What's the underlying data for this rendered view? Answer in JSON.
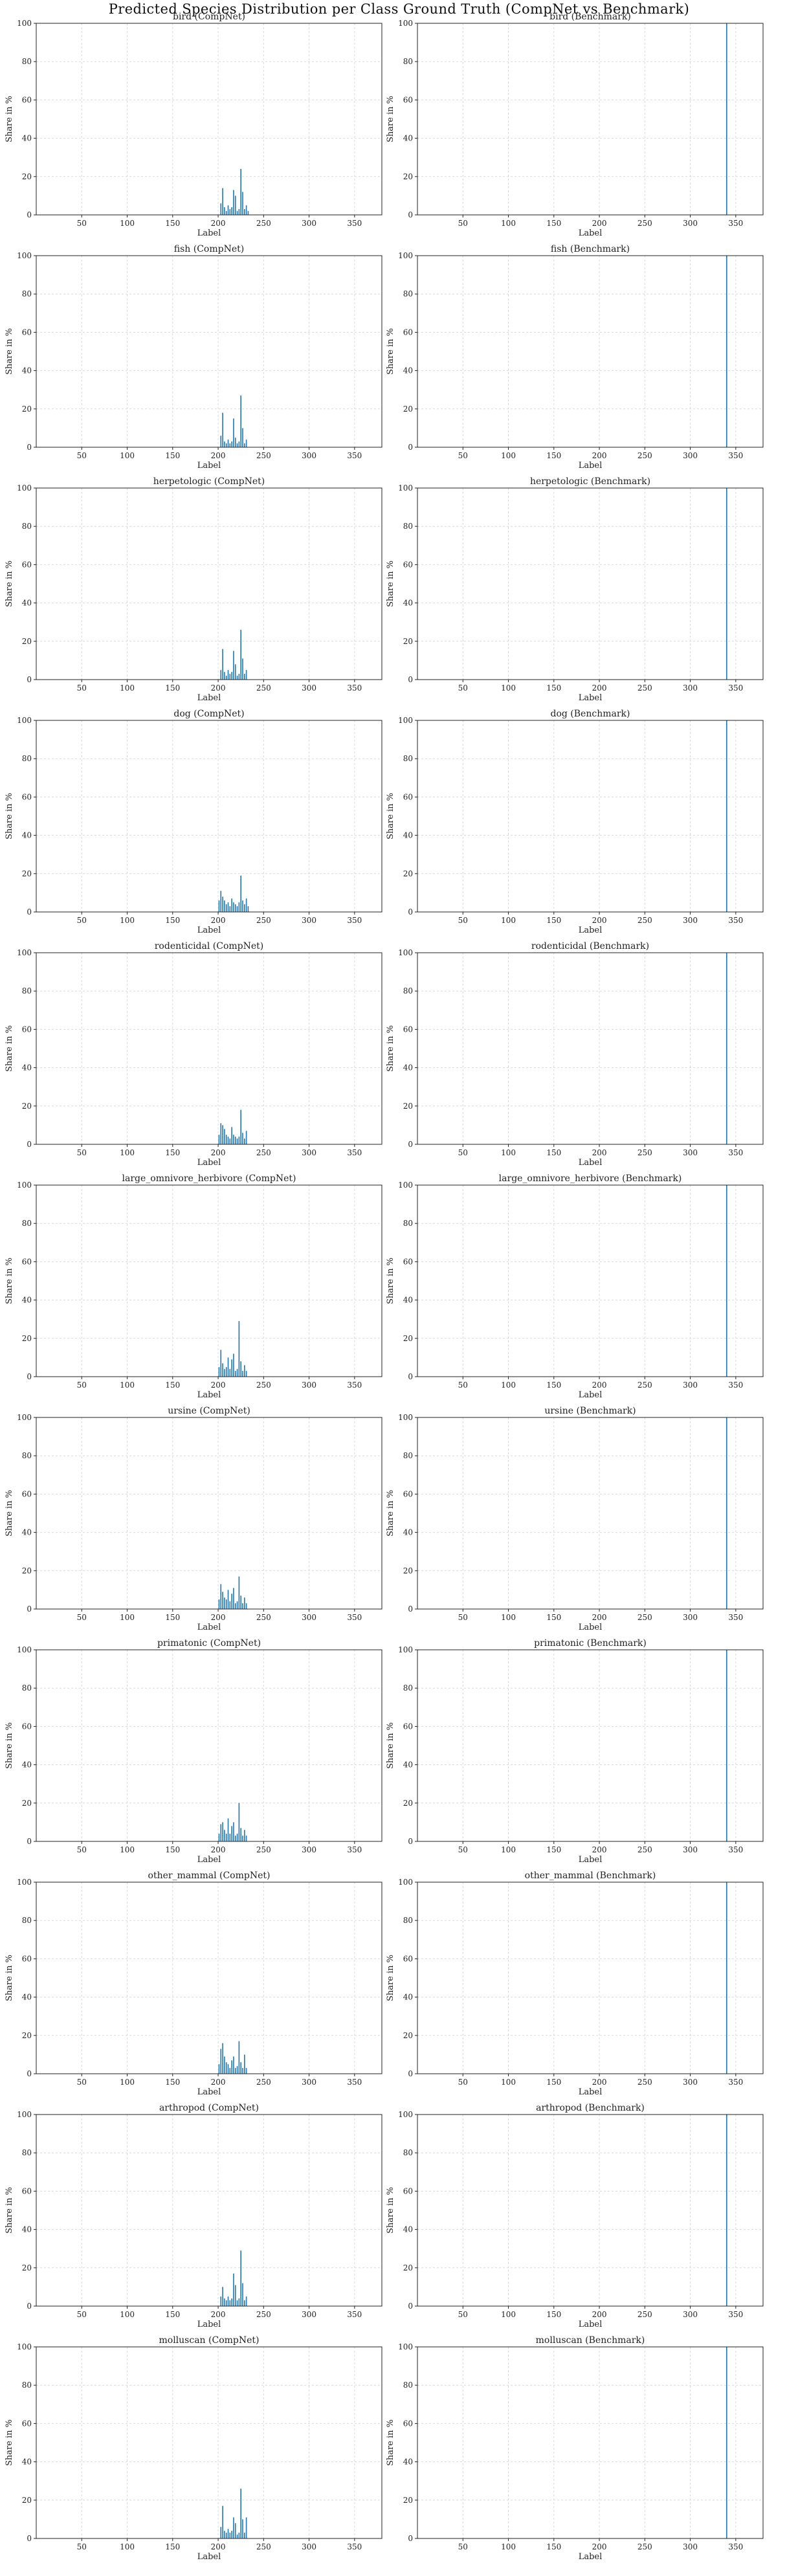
{
  "figure_title": "Predicted Species Distribution per Class Ground Truth (CompNet vs Benchmark)",
  "colors": {
    "bar": "#1f77b4",
    "frame": "#222222",
    "grid": "#d9d9d9"
  },
  "chart_data": [
    {
      "type": "bar",
      "title": "bird (CompNet)",
      "xlabel": "Label",
      "ylabel": "Share in %",
      "xlim": [
        0,
        380
      ],
      "ylim": [
        0,
        100
      ],
      "xticks": [
        50,
        100,
        150,
        200,
        250,
        300,
        350
      ],
      "yticks": [
        0,
        20,
        40,
        60,
        80,
        100
      ],
      "grid": true,
      "x": [
        203,
        205,
        207,
        209,
        211,
        213,
        215,
        217,
        219,
        221,
        223,
        225,
        227,
        229,
        231,
        233
      ],
      "values": [
        6,
        14,
        4,
        2,
        5,
        3,
        4,
        13,
        10,
        2,
        3,
        24,
        12,
        3,
        5,
        2
      ]
    },
    {
      "type": "bar",
      "title": "bird (Benchmark)",
      "xlabel": "Label",
      "ylabel": "Share in %",
      "xlim": [
        0,
        380
      ],
      "ylim": [
        0,
        100
      ],
      "xticks": [
        50,
        100,
        150,
        200,
        250,
        300,
        350
      ],
      "yticks": [
        0,
        20,
        40,
        60,
        80,
        100
      ],
      "grid": true,
      "x": [
        340
      ],
      "values": [
        100
      ]
    },
    {
      "type": "bar",
      "title": "fish (CompNet)",
      "xlabel": "Label",
      "ylabel": "Share in %",
      "xlim": [
        0,
        380
      ],
      "ylim": [
        0,
        100
      ],
      "xticks": [
        50,
        100,
        150,
        200,
        250,
        300,
        350
      ],
      "yticks": [
        0,
        20,
        40,
        60,
        80,
        100
      ],
      "grid": true,
      "x": [
        203,
        205,
        207,
        209,
        211,
        213,
        215,
        217,
        219,
        221,
        223,
        225,
        227,
        229,
        231
      ],
      "values": [
        6,
        18,
        3,
        2,
        4,
        2,
        3,
        15,
        5,
        2,
        3,
        27,
        10,
        2,
        4
      ]
    },
    {
      "type": "bar",
      "title": "fish (Benchmark)",
      "xlabel": "Label",
      "ylabel": "Share in %",
      "xlim": [
        0,
        380
      ],
      "ylim": [
        0,
        100
      ],
      "xticks": [
        50,
        100,
        150,
        200,
        250,
        300,
        350
      ],
      "yticks": [
        0,
        20,
        40,
        60,
        80,
        100
      ],
      "grid": true,
      "x": [
        340
      ],
      "values": [
        100
      ]
    },
    {
      "type": "bar",
      "title": "herpetologic (CompNet)",
      "xlabel": "Label",
      "ylabel": "Share in %",
      "xlim": [
        0,
        380
      ],
      "ylim": [
        0,
        100
      ],
      "xticks": [
        50,
        100,
        150,
        200,
        250,
        300,
        350
      ],
      "yticks": [
        0,
        20,
        40,
        60,
        80,
        100
      ],
      "grid": true,
      "x": [
        203,
        205,
        207,
        209,
        211,
        213,
        215,
        217,
        219,
        221,
        223,
        225,
        227,
        229,
        231
      ],
      "values": [
        5,
        16,
        4,
        2,
        5,
        3,
        4,
        15,
        8,
        2,
        3,
        26,
        11,
        3,
        5
      ]
    },
    {
      "type": "bar",
      "title": "herpetologic (Benchmark)",
      "xlabel": "Label",
      "ylabel": "Share in %",
      "xlim": [
        0,
        380
      ],
      "ylim": [
        0,
        100
      ],
      "xticks": [
        50,
        100,
        150,
        200,
        250,
        300,
        350
      ],
      "yticks": [
        0,
        20,
        40,
        60,
        80,
        100
      ],
      "grid": true,
      "x": [
        340
      ],
      "values": [
        100
      ]
    },
    {
      "type": "bar",
      "title": "dog (CompNet)",
      "xlabel": "Label",
      "ylabel": "Share in %",
      "xlim": [
        0,
        380
      ],
      "ylim": [
        0,
        100
      ],
      "xticks": [
        50,
        100,
        150,
        200,
        250,
        300,
        350
      ],
      "yticks": [
        0,
        20,
        40,
        60,
        80,
        100
      ],
      "grid": true,
      "x": [
        201,
        203,
        205,
        207,
        209,
        211,
        213,
        215,
        217,
        219,
        221,
        223,
        225,
        227,
        229,
        231,
        233
      ],
      "values": [
        6,
        11,
        8,
        6,
        4,
        5,
        3,
        7,
        5,
        4,
        3,
        5,
        19,
        6,
        4,
        7,
        3
      ]
    },
    {
      "type": "bar",
      "title": "dog (Benchmark)",
      "xlabel": "Label",
      "ylabel": "Share in %",
      "xlim": [
        0,
        380
      ],
      "ylim": [
        0,
        100
      ],
      "xticks": [
        50,
        100,
        150,
        200,
        250,
        300,
        350
      ],
      "yticks": [
        0,
        20,
        40,
        60,
        80,
        100
      ],
      "grid": true,
      "x": [
        340
      ],
      "values": [
        100
      ]
    },
    {
      "type": "bar",
      "title": "rodenticidal (CompNet)",
      "xlabel": "Label",
      "ylabel": "Share in %",
      "xlim": [
        0,
        380
      ],
      "ylim": [
        0,
        100
      ],
      "xticks": [
        50,
        100,
        150,
        200,
        250,
        300,
        350
      ],
      "yticks": [
        0,
        20,
        40,
        60,
        80,
        100
      ],
      "grid": true,
      "x": [
        201,
        203,
        205,
        207,
        209,
        211,
        213,
        215,
        217,
        219,
        221,
        223,
        225,
        227,
        229,
        231
      ],
      "values": [
        5,
        11,
        10,
        8,
        5,
        4,
        3,
        9,
        5,
        4,
        3,
        4,
        18,
        6,
        3,
        7
      ]
    },
    {
      "type": "bar",
      "title": "rodenticidal (Benchmark)",
      "xlabel": "Label",
      "ylabel": "Share in %",
      "xlim": [
        0,
        380
      ],
      "ylim": [
        0,
        100
      ],
      "xticks": [
        50,
        100,
        150,
        200,
        250,
        300,
        350
      ],
      "yticks": [
        0,
        20,
        40,
        60,
        80,
        100
      ],
      "grid": true,
      "x": [
        340
      ],
      "values": [
        100
      ]
    },
    {
      "type": "bar",
      "title": "large_omnivore_herbivore (CompNet)",
      "xlabel": "Label",
      "ylabel": "Share in %",
      "xlim": [
        0,
        380
      ],
      "ylim": [
        0,
        100
      ],
      "xticks": [
        50,
        100,
        150,
        200,
        250,
        300,
        350
      ],
      "yticks": [
        0,
        20,
        40,
        60,
        80,
        100
      ],
      "grid": true,
      "x": [
        201,
        203,
        205,
        207,
        209,
        211,
        213,
        215,
        217,
        219,
        221,
        223,
        225,
        227,
        229,
        231
      ],
      "values": [
        5,
        14,
        7,
        4,
        5,
        10,
        4,
        9,
        12,
        3,
        4,
        29,
        8,
        3,
        6,
        3
      ]
    },
    {
      "type": "bar",
      "title": "large_omnivore_herbivore (Benchmark)",
      "xlabel": "Label",
      "ylabel": "Share in %",
      "xlim": [
        0,
        380
      ],
      "ylim": [
        0,
        100
      ],
      "xticks": [
        50,
        100,
        150,
        200,
        250,
        300,
        350
      ],
      "yticks": [
        0,
        20,
        40,
        60,
        80,
        100
      ],
      "grid": true,
      "x": [
        340
      ],
      "values": [
        100
      ]
    },
    {
      "type": "bar",
      "title": "ursine (CompNet)",
      "xlabel": "Label",
      "ylabel": "Share in %",
      "xlim": [
        0,
        380
      ],
      "ylim": [
        0,
        100
      ],
      "xticks": [
        50,
        100,
        150,
        200,
        250,
        300,
        350
      ],
      "yticks": [
        0,
        20,
        40,
        60,
        80,
        100
      ],
      "grid": true,
      "x": [
        201,
        203,
        205,
        207,
        209,
        211,
        213,
        215,
        217,
        219,
        221,
        223,
        225,
        227,
        229,
        231
      ],
      "values": [
        5,
        13,
        9,
        6,
        5,
        10,
        4,
        8,
        11,
        3,
        4,
        17,
        7,
        3,
        6,
        3
      ]
    },
    {
      "type": "bar",
      "title": "ursine (Benchmark)",
      "xlabel": "Label",
      "ylabel": "Share in %",
      "xlim": [
        0,
        380
      ],
      "ylim": [
        0,
        100
      ],
      "xticks": [
        50,
        100,
        150,
        200,
        250,
        300,
        350
      ],
      "yticks": [
        0,
        20,
        40,
        60,
        80,
        100
      ],
      "grid": true,
      "x": [
        340
      ],
      "values": [
        100
      ]
    },
    {
      "type": "bar",
      "title": "primatonic (CompNet)",
      "xlabel": "Label",
      "ylabel": "Share in %",
      "xlim": [
        0,
        380
      ],
      "ylim": [
        0,
        100
      ],
      "xticks": [
        50,
        100,
        150,
        200,
        250,
        300,
        350
      ],
      "yticks": [
        0,
        20,
        40,
        60,
        80,
        100
      ],
      "grid": true,
      "x": [
        201,
        203,
        205,
        207,
        209,
        211,
        213,
        215,
        217,
        219,
        221,
        223,
        225,
        227,
        229,
        231
      ],
      "values": [
        4,
        9,
        10,
        6,
        4,
        12,
        4,
        8,
        10,
        3,
        4,
        20,
        7,
        3,
        6,
        3
      ]
    },
    {
      "type": "bar",
      "title": "primatonic (Benchmark)",
      "xlabel": "Label",
      "ylabel": "Share in %",
      "xlim": [
        0,
        380
      ],
      "ylim": [
        0,
        100
      ],
      "xticks": [
        50,
        100,
        150,
        200,
        250,
        300,
        350
      ],
      "yticks": [
        0,
        20,
        40,
        60,
        80,
        100
      ],
      "grid": true,
      "x": [
        340
      ],
      "values": [
        100
      ]
    },
    {
      "type": "bar",
      "title": "other_mammal (CompNet)",
      "xlabel": "Label",
      "ylabel": "Share in %",
      "xlim": [
        0,
        380
      ],
      "ylim": [
        0,
        100
      ],
      "xticks": [
        50,
        100,
        150,
        200,
        250,
        300,
        350
      ],
      "yticks": [
        0,
        20,
        40,
        60,
        80,
        100
      ],
      "grid": true,
      "x": [
        201,
        203,
        205,
        207,
        209,
        211,
        213,
        215,
        217,
        219,
        221,
        223,
        225,
        227,
        229,
        231
      ],
      "values": [
        5,
        13,
        16,
        9,
        6,
        5,
        3,
        7,
        9,
        3,
        4,
        17,
        6,
        3,
        10,
        3
      ]
    },
    {
      "type": "bar",
      "title": "other_mammal (Benchmark)",
      "xlabel": "Label",
      "ylabel": "Share in %",
      "xlim": [
        0,
        380
      ],
      "ylim": [
        0,
        100
      ],
      "xticks": [
        50,
        100,
        150,
        200,
        250,
        300,
        350
      ],
      "yticks": [
        0,
        20,
        40,
        60,
        80,
        100
      ],
      "grid": true,
      "x": [
        340
      ],
      "values": [
        100
      ]
    },
    {
      "type": "bar",
      "title": "arthropod (CompNet)",
      "xlabel": "Label",
      "ylabel": "Share in %",
      "xlim": [
        0,
        380
      ],
      "ylim": [
        0,
        100
      ],
      "xticks": [
        50,
        100,
        150,
        200,
        250,
        300,
        350
      ],
      "yticks": [
        0,
        20,
        40,
        60,
        80,
        100
      ],
      "grid": true,
      "x": [
        203,
        205,
        207,
        209,
        211,
        213,
        215,
        217,
        219,
        221,
        223,
        225,
        227,
        229,
        231
      ],
      "values": [
        5,
        10,
        4,
        3,
        5,
        3,
        4,
        17,
        11,
        3,
        4,
        29,
        12,
        3,
        5
      ]
    },
    {
      "type": "bar",
      "title": "arthropod (Benchmark)",
      "xlabel": "Label",
      "ylabel": "Share in %",
      "xlim": [
        0,
        380
      ],
      "ylim": [
        0,
        100
      ],
      "xticks": [
        50,
        100,
        150,
        200,
        250,
        300,
        350
      ],
      "yticks": [
        0,
        20,
        40,
        60,
        80,
        100
      ],
      "grid": true,
      "x": [
        340
      ],
      "values": [
        100
      ]
    },
    {
      "type": "bar",
      "title": "molluscan (CompNet)",
      "xlabel": "Label",
      "ylabel": "Share in %",
      "xlim": [
        0,
        380
      ],
      "ylim": [
        0,
        100
      ],
      "xticks": [
        50,
        100,
        150,
        200,
        250,
        300,
        350
      ],
      "yticks": [
        0,
        20,
        40,
        60,
        80,
        100
      ],
      "grid": true,
      "x": [
        203,
        205,
        207,
        209,
        211,
        213,
        215,
        217,
        219,
        221,
        223,
        225,
        227,
        229,
        231
      ],
      "values": [
        6,
        17,
        4,
        3,
        5,
        3,
        4,
        11,
        8,
        2,
        3,
        26,
        10,
        3,
        11
      ]
    },
    {
      "type": "bar",
      "title": "molluscan (Benchmark)",
      "xlabel": "Label",
      "ylabel": "Share in %",
      "xlim": [
        0,
        380
      ],
      "ylim": [
        0,
        100
      ],
      "xticks": [
        50,
        100,
        150,
        200,
        250,
        300,
        350
      ],
      "yticks": [
        0,
        20,
        40,
        60,
        80,
        100
      ],
      "grid": true,
      "x": [
        340
      ],
      "values": [
        100
      ]
    }
  ]
}
